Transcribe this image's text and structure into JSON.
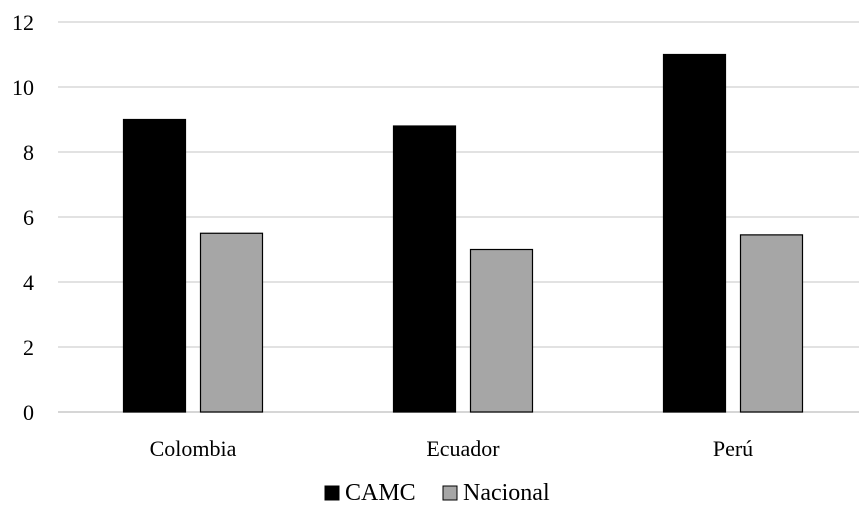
{
  "chart_data": {
    "type": "bar",
    "title": "",
    "xlabel": "",
    "ylabel": "",
    "categories": [
      "Colombia",
      "Ecuador",
      "Perú"
    ],
    "series": [
      {
        "name": "CAMC",
        "values": [
          9.0,
          8.8,
          11.0
        ],
        "color": "#000000"
      },
      {
        "name": "Nacional",
        "values": [
          5.5,
          5.0,
          5.45
        ],
        "color": "#a6a6a6"
      }
    ],
    "ylim": [
      0,
      12
    ],
    "yticks": [
      0,
      2,
      4,
      6,
      8,
      10,
      12
    ],
    "grid": true,
    "legend": "bottom-center"
  }
}
